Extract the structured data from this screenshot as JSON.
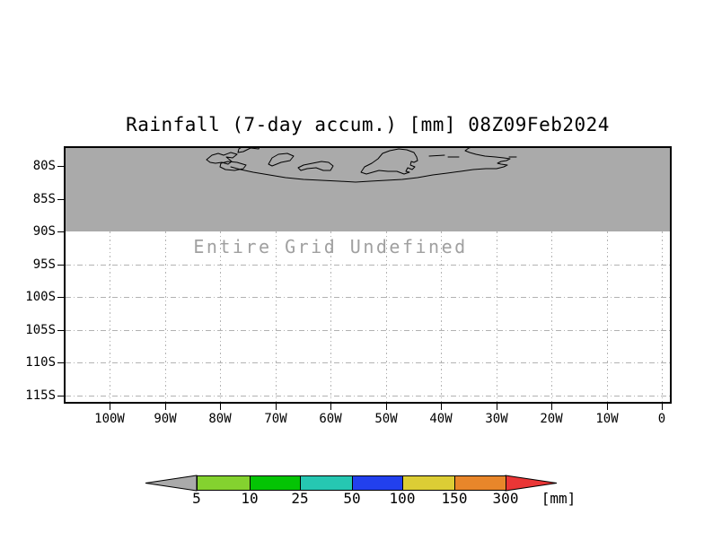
{
  "title": "Rainfall (7-day accum.) [mm] 08Z09Feb2024",
  "map": {
    "status_text": "Entire Grid Undefined",
    "lat_tick_labels": [
      "80S",
      "85S",
      "90S",
      "95S",
      "100S",
      "105S",
      "110S",
      "115S"
    ],
    "lon_tick_labels": [
      "100W",
      "90W",
      "80W",
      "70W",
      "60W",
      "50W",
      "40W",
      "30W",
      "20W",
      "10W",
      "0"
    ],
    "colors": {
      "background": "#ffffff",
      "land_shading": "#aaaaaa",
      "coastline": "#000000",
      "gridline": "#b2b2b2",
      "status_text": "#a0a0a0",
      "axis": "#000000"
    }
  },
  "colorbar": {
    "tick_labels": [
      "5",
      "10",
      "25",
      "50",
      "100",
      "150",
      "300"
    ],
    "unit_label": "[mm]",
    "below_min_color": "#aaaaaa",
    "above_max_color": "#ea3636",
    "segment_colors": [
      "#84d22f",
      "#04c404",
      "#26c7b2",
      "#2240ee",
      "#dccd35",
      "#e8862a"
    ],
    "outline_color": "#000000"
  },
  "chart_data": {
    "type": "heatmap",
    "subtype": "filled_contour_weather_map",
    "title": "Rainfall (7-day accum.) [mm] 08Z09Feb2024",
    "variable": "Rainfall (7-day accumulation)",
    "unit": "mm",
    "valid_time_label": "08Z09Feb2024",
    "x_axis": {
      "label": "",
      "tick_labels": [
        "100W",
        "90W",
        "80W",
        "70W",
        "60W",
        "50W",
        "40W",
        "30W",
        "20W",
        "10W",
        "0"
      ]
    },
    "y_axis": {
      "label": "",
      "tick_labels": [
        "80S",
        "85S",
        "90S",
        "95S",
        "100S",
        "105S",
        "110S",
        "115S"
      ]
    },
    "grid": true,
    "legend_position": "bottom-colorbar",
    "colorbar_levels": [
      5,
      10,
      25,
      50,
      100,
      150,
      300
    ],
    "colorbar_colors": [
      "#aaaaaa",
      "#84d22f",
      "#04c404",
      "#26c7b2",
      "#2240ee",
      "#dccd35",
      "#e8862a",
      "#ea3636"
    ],
    "data_status": "Entire Grid Undefined",
    "values": [],
    "notes": "No rainfall values are rendered; area between map top and the 90S line is uniform gray land shading with black coastline contours; region south of 90S is empty white grid."
  }
}
